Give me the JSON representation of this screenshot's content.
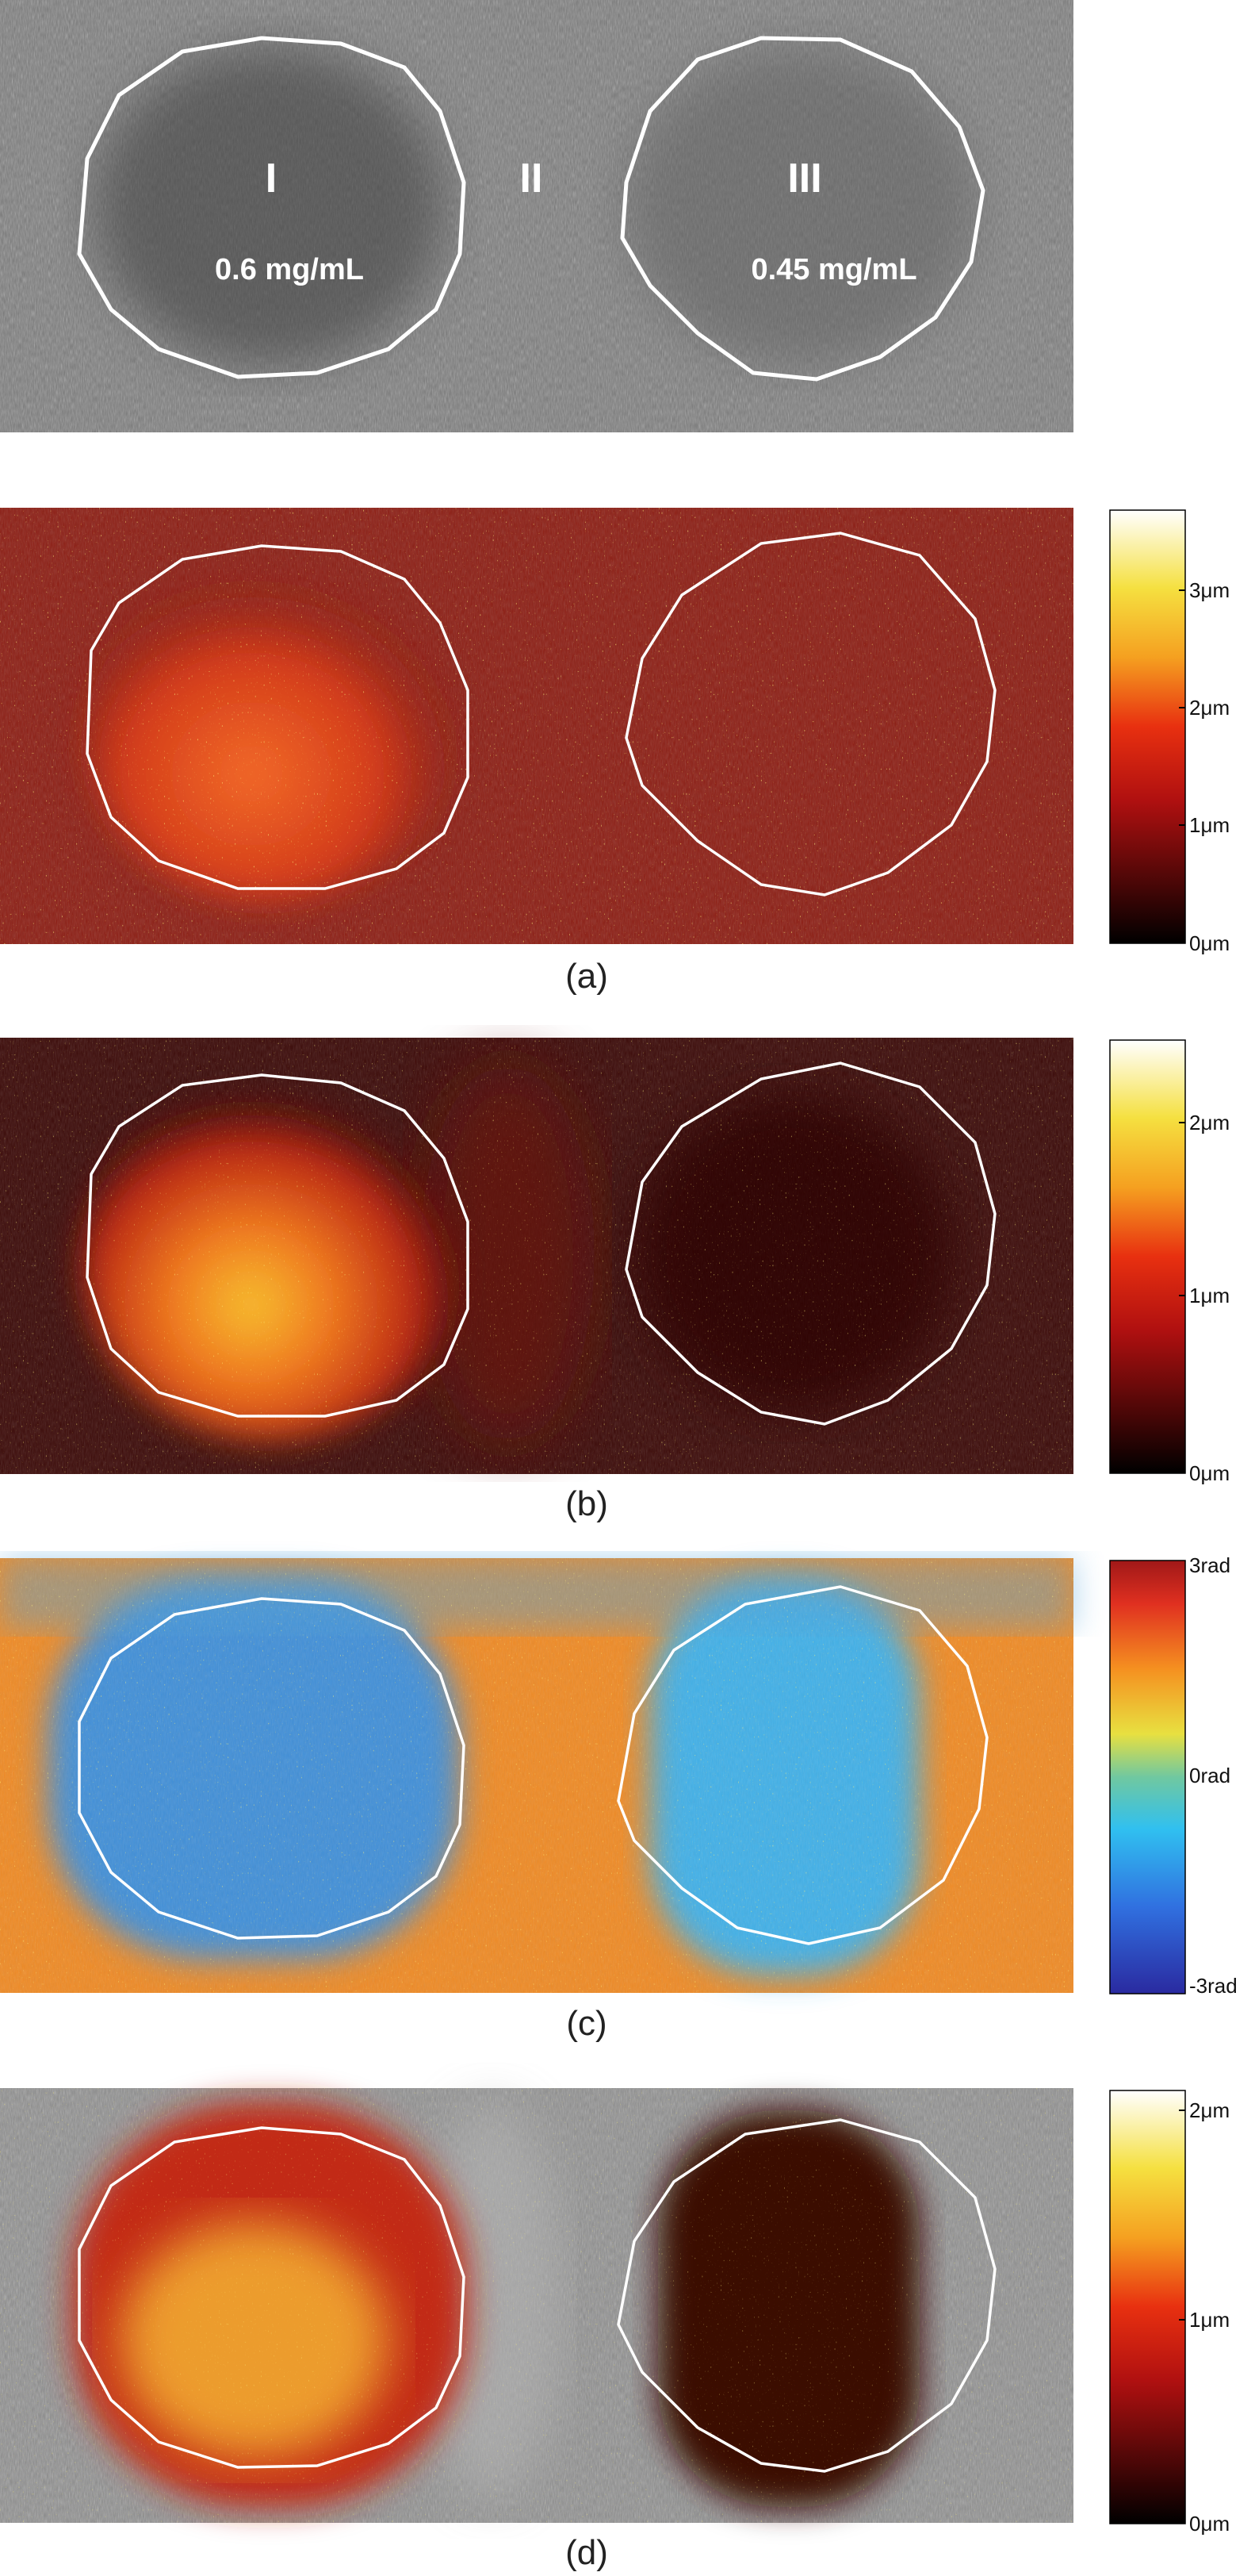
{
  "figure": {
    "top_panel": {
      "region_labels": [
        "I",
        "II",
        "III"
      ],
      "concentration_labels": [
        "0.6 mg/mL",
        "0.45 mg/mL"
      ]
    },
    "panels": [
      {
        "caption": "(a)",
        "colormap": "hot",
        "colorbar_ticks": [
          "3μm",
          "2μm",
          "1μm",
          "0μm"
        ]
      },
      {
        "caption": "(b)",
        "colormap": "hot",
        "colorbar_ticks": [
          "2μm",
          "1μm",
          "0μm"
        ]
      },
      {
        "caption": "(c)",
        "colormap": "jet",
        "colorbar_ticks": [
          "3rad",
          "0rad",
          "-3rad"
        ]
      },
      {
        "caption": "(d)",
        "colormap": "hot",
        "colorbar_ticks": [
          "2μm",
          "1μm",
          "0μm"
        ]
      }
    ],
    "colors": {
      "outline": "#ffffff",
      "background": "#ffffff"
    }
  }
}
